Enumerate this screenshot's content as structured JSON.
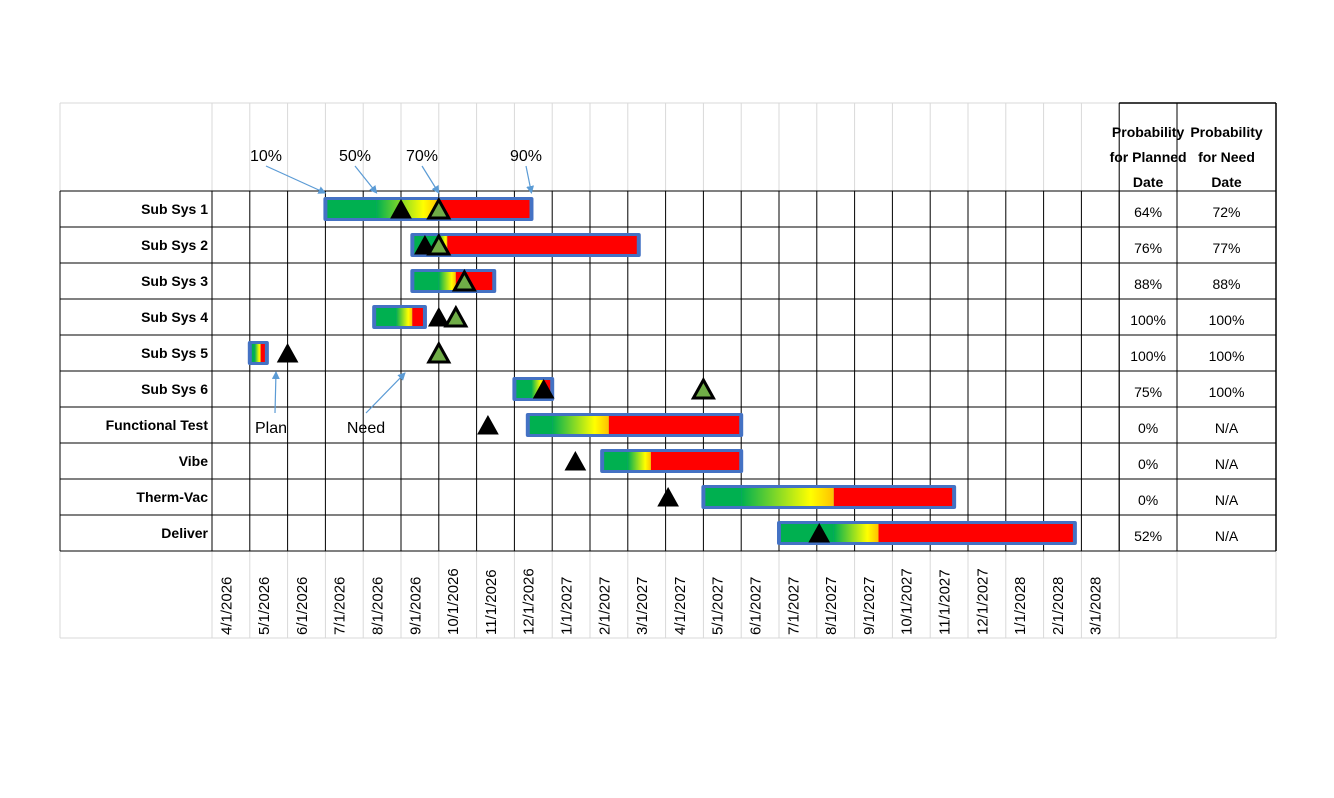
{
  "chart_data": {
    "type": "gantt",
    "dates": [
      "4/1/2026",
      "5/1/2026",
      "6/1/2026",
      "7/1/2026",
      "8/1/2026",
      "9/1/2026",
      "10/1/2026",
      "11/1/2026",
      "12/1/2026",
      "1/1/2027",
      "2/1/2027",
      "3/1/2027",
      "4/1/2027",
      "5/1/2027",
      "6/1/2027",
      "7/1/2027",
      "8/1/2027",
      "9/1/2027",
      "10/1/2027",
      "11/1/2027",
      "12/1/2027",
      "1/1/2028",
      "2/1/2028",
      "3/1/2028"
    ],
    "headers": {
      "planned": "Probability for Planned Date",
      "need": "Probability for Need Date"
    },
    "percentile_labels": [
      {
        "text": "10%",
        "date": "7/1/2026"
      },
      {
        "text": "50%",
        "date": "8/12/2026"
      },
      {
        "text": "70%",
        "date": "10/1/2026"
      },
      {
        "text": "90%",
        "date": "12/15/2026"
      }
    ],
    "annotations": [
      {
        "text": "Plan",
        "date": "6/1/2026"
      },
      {
        "text": "Need",
        "date": "8/15/2026"
      }
    ],
    "rows": [
      {
        "name": "Sub Sys 1",
        "start": "7/1/2026",
        "p50": "8/12/2026",
        "p70": "10/1/2026",
        "end": "12/15/2026",
        "plan": "9/1/2026",
        "need": "10/1/2026",
        "prob_planned": "64%",
        "prob_need": "72%"
      },
      {
        "name": "Sub Sys 2",
        "start": "9/10/2026",
        "p50": "10/1/2026",
        "p70": "10/8/2026",
        "end": "3/10/2027",
        "plan": "9/20/2026",
        "need": "10/1/2026",
        "prob_planned": "76%",
        "prob_need": "77%"
      },
      {
        "name": "Sub Sys 3",
        "start": "9/10/2026",
        "p50": "10/1/2026",
        "p70": "10/15/2026",
        "end": "11/15/2026",
        "plan": "10/22/2026",
        "need": "10/22/2026",
        "prob_planned": "88%",
        "prob_need": "88%"
      },
      {
        "name": "Sub Sys 4",
        "start": "8/10/2026",
        "p50": "8/28/2026",
        "p70": "9/10/2026",
        "end": "9/20/2026",
        "plan": "10/1/2026",
        "need": "10/15/2026",
        "prob_planned": "100%",
        "prob_need": "100%"
      },
      {
        "name": "Sub Sys 5",
        "start": "5/1/2026",
        "p50": "5/5/2026",
        "p70": "5/10/2026",
        "end": "5/15/2026",
        "plan": "6/1/2026",
        "need": "10/1/2026",
        "prob_planned": "100%",
        "prob_need": "100%"
      },
      {
        "name": "Sub Sys 6",
        "start": "12/1/2026",
        "p50": "12/15/2026",
        "p70": "12/25/2026",
        "end": "1/1/2027",
        "plan": "12/25/2026",
        "need": "5/1/2027",
        "prob_planned": "75%",
        "prob_need": "100%"
      },
      {
        "name": "Functional Test",
        "start": "12/12/2026",
        "p50": "1/1/2027",
        "p70": "2/15/2027",
        "end": "6/1/2027",
        "plan": "11/10/2026",
        "need": "",
        "prob_planned": "0%",
        "prob_need": "N/A"
      },
      {
        "name": "Vibe",
        "start": "2/10/2027",
        "p50": "3/1/2027",
        "p70": "3/20/2027",
        "end": "6/1/2027",
        "plan": "1/20/2027",
        "need": "",
        "prob_planned": "0%",
        "prob_need": "N/A"
      },
      {
        "name": "Therm-Vac",
        "start": "5/1/2027",
        "p50": "6/1/2027",
        "p70": "8/15/2027",
        "end": "11/20/2027",
        "plan": "4/3/2027",
        "need": "",
        "prob_planned": "0%",
        "prob_need": "N/A"
      },
      {
        "name": "Deliver",
        "start": "7/1/2027",
        "p50": "8/15/2027",
        "p70": "9/20/2027",
        "end": "2/25/2028",
        "plan": "8/3/2027",
        "need": "",
        "prob_planned": "52%",
        "prob_need": "N/A"
      }
    ],
    "colors": {
      "green": "#00b050",
      "yellow": "#ffff00",
      "orange": "#ffc000",
      "red": "#ff0000",
      "border": "#4472c4",
      "plan_marker": "#000000",
      "need_marker": "#70ad47",
      "arrow": "#5b9bd5",
      "grid": "#d9d9d9"
    }
  }
}
